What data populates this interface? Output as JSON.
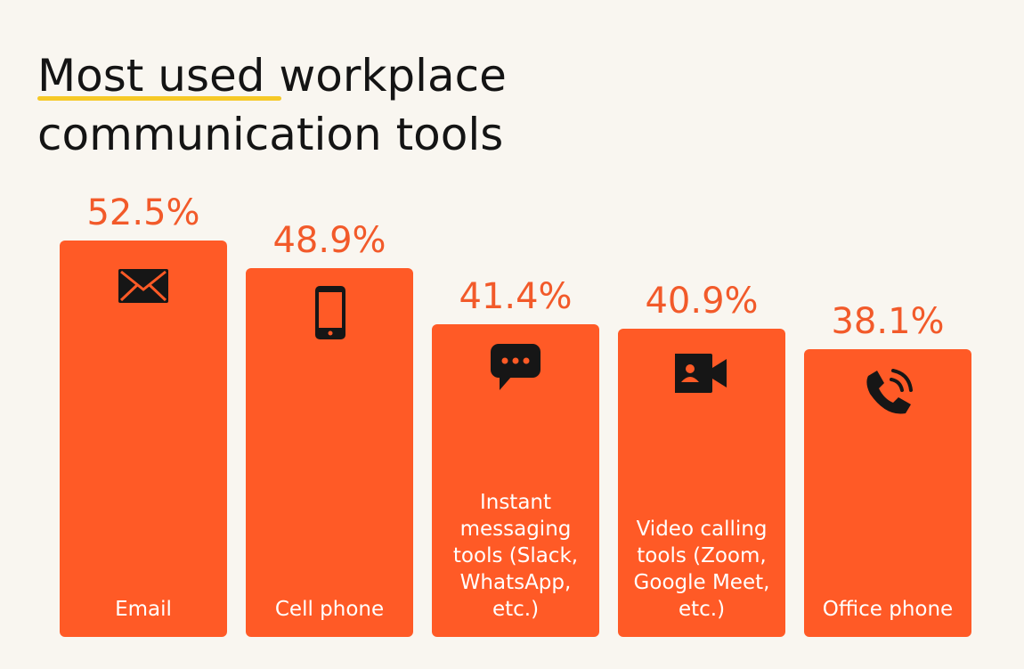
{
  "chart_data": {
    "type": "bar",
    "title": "Most used workplace communication tools",
    "categories": [
      "Email",
      "Cell phone",
      "Instant messaging tools (Slack, WhatsApp, etc.)",
      "Video calling tools (Zoom, Google Meet, etc.)",
      "Office phone"
    ],
    "values": [
      52.5,
      48.9,
      41.4,
      40.9,
      38.1
    ],
    "value_labels": [
      "52.5%",
      "48.9%",
      "41.4%",
      "40.9%",
      "38.1%"
    ],
    "color": "#ff5a26"
  }
}
